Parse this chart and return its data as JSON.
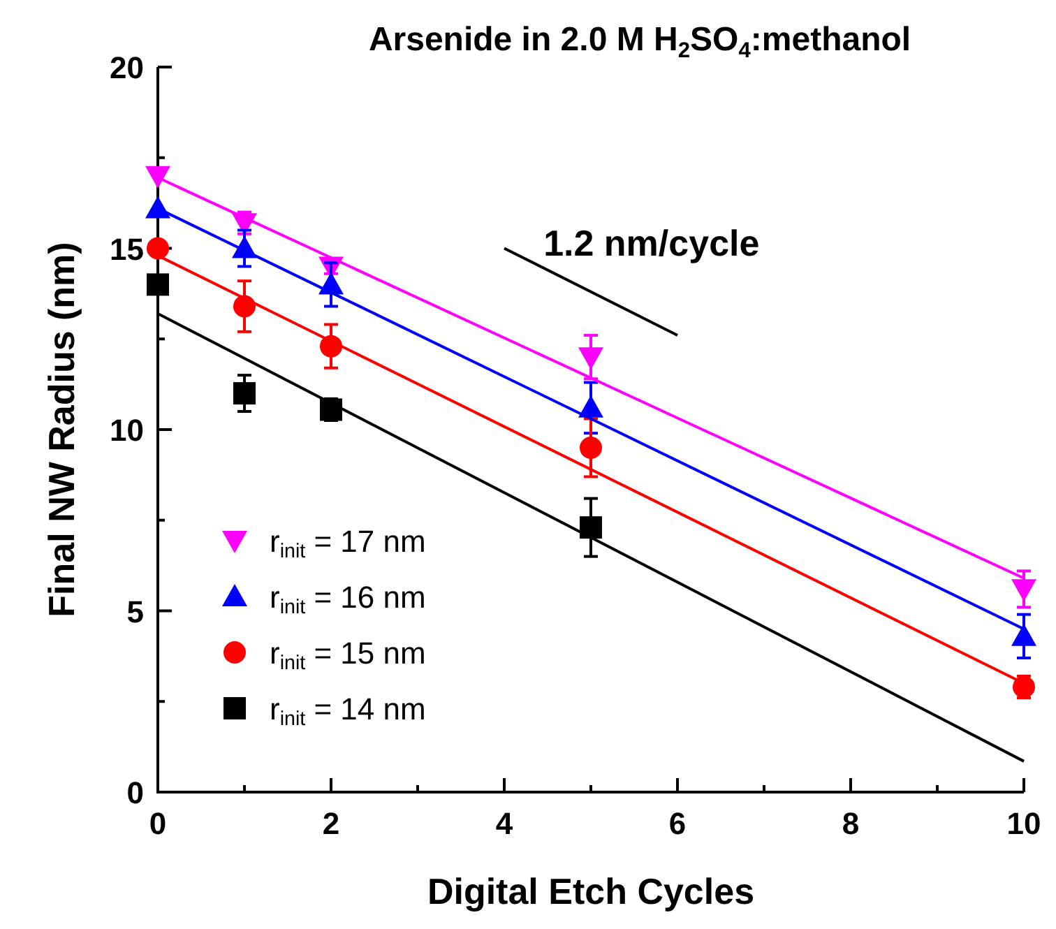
{
  "chart_data": {
    "type": "scatter",
    "title": "Arsenide in 2.0 M H$_{2}$SO$_{4}$:methanol",
    "xlabel": "Digital Etch Cycles",
    "ylabel": "Final NW Radius (nm)",
    "xlim": [
      0,
      10
    ],
    "ylim": [
      0,
      20
    ],
    "xticks": [
      0,
      {
        "value": 1,
        "label": null
      },
      2,
      {
        "value": 3,
        "label": null
      },
      4,
      {
        "value": 5,
        "label": null
      },
      6,
      {
        "value": 7,
        "label": null
      },
      8,
      {
        "value": 9,
        "label": null
      },
      10
    ],
    "yticks": [
      0,
      {
        "value": 2.5,
        "label": null
      },
      5,
      {
        "value": 7.5,
        "label": null
      },
      10,
      {
        "value": 12.5,
        "label": null
      },
      15,
      {
        "value": 17.5,
        "label": null
      },
      20
    ],
    "legend": "bottom left",
    "grid": false,
    "annotations": [
      "1.2 nm/cycle"
    ],
    "series": [
      {
        "name": "r$_{init}$ = 17 nm",
        "marker": "triangle-down",
        "color": "#ff00ff",
        "x": [
          0,
          1,
          2,
          5,
          10
        ],
        "values": [
          17.0,
          15.7,
          14.5,
          12.0,
          5.6
        ],
        "errors": [
          null,
          0.3,
          0.2,
          0.6,
          0.5
        ]
      },
      {
        "name": "r$_{init}$ = 16 nm",
        "marker": "triangle",
        "color": "#0000ff",
        "x": [
          0,
          1,
          2,
          5,
          10
        ],
        "values": [
          16.1,
          15.0,
          14.0,
          10.6,
          4.3
        ],
        "errors": [
          null,
          0.5,
          0.6,
          0.7,
          0.6
        ]
      },
      {
        "name": "r$_{init}$ = 15 nm",
        "marker": "circle",
        "color": "#ff0000",
        "x": [
          0,
          1,
          2,
          5,
          10
        ],
        "values": [
          15.0,
          13.4,
          12.3,
          9.5,
          2.9
        ],
        "errors": [
          null,
          0.7,
          0.6,
          0.8,
          0.3
        ]
      },
      {
        "name": "r$_{init}$ = 14 nm",
        "marker": "square",
        "color": "#000000",
        "x": [
          0,
          1,
          2,
          5
        ],
        "values": [
          14.0,
          11.0,
          10.55,
          7.3
        ],
        "errors": [
          null,
          0.5,
          0.3,
          0.8
        ]
      },
      {
        "type": "line",
        "color": "#ff00ff",
        "x": [
          0,
          10
        ],
        "values": [
          16.95,
          5.9
        ]
      },
      {
        "type": "line",
        "color": "#0000ff",
        "x": [
          0,
          10
        ],
        "values": [
          16.1,
          4.5
        ]
      },
      {
        "type": "line",
        "color": "#ff0000",
        "x": [
          0,
          10
        ],
        "values": [
          14.8,
          3.0
        ]
      },
      {
        "type": "line",
        "color": "#000000",
        "x": [
          0,
          10
        ],
        "values": [
          13.2,
          0.85
        ]
      },
      {
        "type": "line",
        "color": "#000000",
        "x": [
          4,
          6
        ],
        "values": [
          15.0,
          12.6
        ]
      }
    ]
  }
}
